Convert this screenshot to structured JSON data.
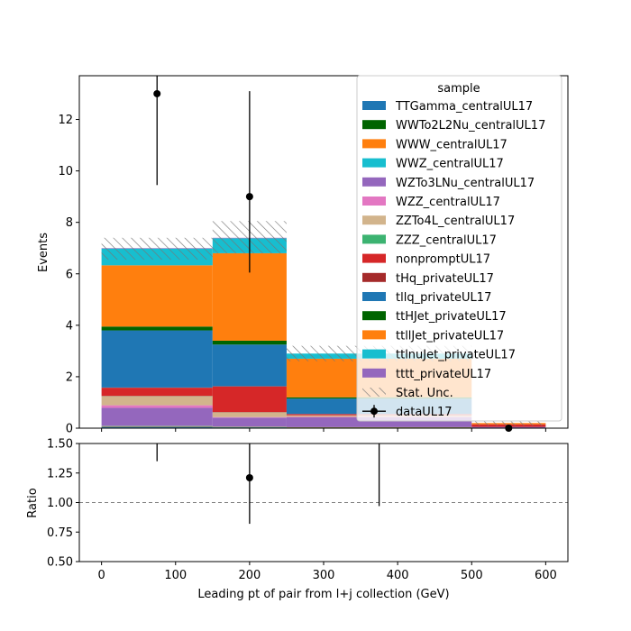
{
  "chart_data": {
    "type": "bar",
    "stacked": true,
    "bin_edges": [
      0,
      150,
      250,
      500,
      600
    ],
    "xlabel": "Leading pt of pair from l+j collection (GeV)",
    "xlim": [
      -30,
      630
    ],
    "xticks": [
      "0",
      "100",
      "200",
      "300",
      "400",
      "500",
      "600"
    ],
    "top_panel": {
      "ylabel": "Events",
      "ylim": [
        0,
        13.7
      ],
      "yticks": [
        "0",
        "2",
        "4",
        "6",
        "8",
        "10",
        "12"
      ]
    },
    "ratio_panel": {
      "ylabel": "Ratio",
      "ylim": [
        0.5,
        1.5
      ],
      "yticks": [
        "0.50",
        "0.75",
        "1.00",
        "1.25",
        "1.50"
      ],
      "reference_line": 1.0,
      "points": [
        {
          "x": 75,
          "y": null,
          "err_lo": 1.35,
          "err_hi": 1.5
        },
        {
          "x": 200,
          "y": 1.21,
          "err_lo": 0.82,
          "err_hi": 1.5
        },
        {
          "x": 375,
          "y": null,
          "err_lo": 0.97,
          "err_hi": 1.5
        }
      ]
    },
    "legend": {
      "title": "sample",
      "placement": "top-right",
      "stat_label": "Stat. Unc.",
      "data_label": "dataUL17"
    },
    "series": [
      {
        "name": "TTGamma_centralUL17",
        "color": "#1f77b4",
        "values": [
          0.05,
          0.03,
          0.02,
          0.0
        ]
      },
      {
        "name": "WWTo2L2Nu_centralUL17",
        "color": "#006400",
        "values": [
          0.01,
          0.01,
          0.01,
          0.0
        ]
      },
      {
        "name": "WWW_centralUL17",
        "color": "#ff7f0e",
        "values": [
          0.02,
          0.01,
          0.01,
          0.0
        ]
      },
      {
        "name": "WWZ_centralUL17",
        "color": "#17becf",
        "values": [
          0.01,
          0.01,
          0.0,
          0.0
        ]
      },
      {
        "name": "WZTo3LNu_centralUL17",
        "color": "#9467bd",
        "values": [
          0.7,
          0.35,
          0.38,
          0.05
        ]
      },
      {
        "name": "WZZ_centralUL17",
        "color": "#e377c2",
        "values": [
          0.1,
          0.02,
          0.02,
          0.0
        ]
      },
      {
        "name": "ZZTo4L_centralUL17",
        "color": "#d2b48c",
        "values": [
          0.35,
          0.18,
          0.06,
          0.0
        ]
      },
      {
        "name": "ZZZ_centralUL17",
        "color": "#3cb371",
        "values": [
          0.01,
          0.01,
          0.0,
          0.0
        ]
      },
      {
        "name": "nonpromptUL17",
        "color": "#d62728",
        "values": [
          0.32,
          1.0,
          0.05,
          0.1
        ]
      },
      {
        "name": "tHq_privateUL17",
        "color": "#a52a2a",
        "values": [
          0.01,
          0.01,
          0.0,
          0.0
        ]
      },
      {
        "name": "tllq_privateUL17",
        "color": "#1f77b4",
        "values": [
          2.22,
          1.62,
          0.6,
          0.0
        ]
      },
      {
        "name": "ttHJet_privateUL17",
        "color": "#006400",
        "values": [
          0.15,
          0.15,
          0.05,
          0.0
        ]
      },
      {
        "name": "ttllJet_privateUL17",
        "color": "#ff7f0e",
        "values": [
          2.38,
          3.4,
          1.5,
          0.05
        ]
      },
      {
        "name": "ttlnuJet_privateUL17",
        "color": "#17becf",
        "values": [
          0.65,
          0.58,
          0.2,
          0.0
        ]
      },
      {
        "name": "tttt_privateUL17",
        "color": "#9467bd",
        "values": [
          0.02,
          0.02,
          0.0,
          0.0
        ]
      }
    ],
    "stat_unc": [
      {
        "lo": 6.55,
        "hi": 7.4
      },
      {
        "lo": 6.8,
        "hi": 8.05
      },
      {
        "lo": 2.6,
        "hi": 3.2
      },
      {
        "lo": 0.1,
        "hi": 0.3
      }
    ],
    "data": [
      {
        "x": 75,
        "y": 13.0,
        "err_lo": 9.45,
        "err_hi": 13.7
      },
      {
        "x": 200,
        "y": 9.0,
        "err_lo": 6.05,
        "err_hi": 13.1
      },
      {
        "x": 550,
        "y": 0.0,
        "err_lo": 0.0,
        "err_hi": 0.0
      }
    ]
  }
}
